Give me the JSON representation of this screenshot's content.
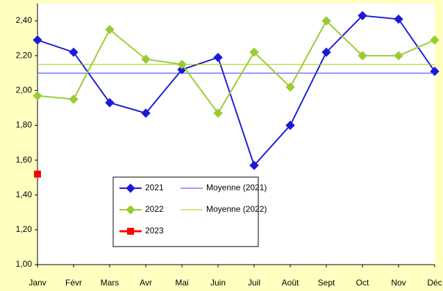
{
  "chart_data": {
    "type": "line",
    "categories": [
      "Janv",
      "Févr",
      "Mars",
      "Avr",
      "Mai",
      "Juin",
      "Juil",
      "Août",
      "Sept",
      "Oct",
      "Nov",
      "Déc"
    ],
    "series": [
      {
        "name": "2021",
        "color": "#1a1ad6",
        "marker": "diamond",
        "values": [
          2.29,
          2.22,
          1.93,
          1.87,
          2.12,
          2.19,
          1.57,
          1.8,
          2.22,
          2.43,
          2.41,
          2.11
        ]
      },
      {
        "name": "Moyenne (2021)",
        "color": "#3333ff",
        "values": [
          2.1,
          2.1,
          2.1,
          2.1,
          2.1,
          2.1,
          2.1,
          2.1,
          2.1,
          2.1,
          2.1,
          2.1
        ]
      },
      {
        "name": "2022",
        "color": "#99cc33",
        "marker": "diamond",
        "values": [
          1.97,
          1.95,
          2.35,
          2.18,
          2.15,
          1.87,
          2.22,
          2.02,
          2.4,
          2.2,
          2.2,
          2.29
        ]
      },
      {
        "name": "Moyenne (2022)",
        "color": "#99cc00",
        "values": [
          2.15,
          2.15,
          2.15,
          2.15,
          2.15,
          2.15,
          2.15,
          2.15,
          2.15,
          2.15,
          2.15,
          2.15
        ]
      },
      {
        "name": "2023",
        "color": "#ff0000",
        "marker": "square",
        "values": [
          1.52,
          null,
          null,
          null,
          null,
          null,
          null,
          null,
          null,
          null,
          null,
          null
        ]
      }
    ],
    "ylim": [
      1.0,
      2.5
    ],
    "yticks": [
      {
        "value": 1.0,
        "label": "1,00"
      },
      {
        "value": 1.2,
        "label": "1,20"
      },
      {
        "value": 1.4,
        "label": "1,40"
      },
      {
        "value": 1.6,
        "label": "1,60"
      },
      {
        "value": 1.8,
        "label": "1,80"
      },
      {
        "value": 2.0,
        "label": "2,00"
      },
      {
        "value": 2.2,
        "label": "2,20"
      },
      {
        "value": 2.4,
        "label": "2,40"
      }
    ],
    "grid": false
  }
}
